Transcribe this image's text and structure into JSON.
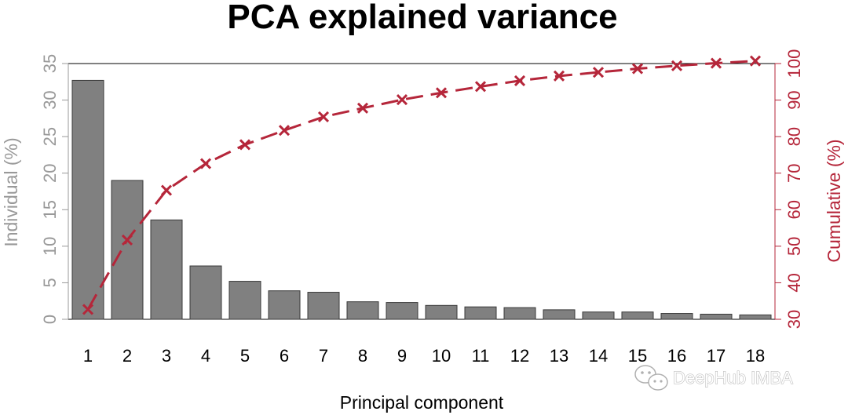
{
  "chart_data": {
    "type": "bar",
    "title": "PCA explained variance",
    "xlabel": "Principal component",
    "ylabel": "Individual (%)",
    "y2label": "Cumulative (%)",
    "categories": [
      "1",
      "2",
      "3",
      "4",
      "5",
      "6",
      "7",
      "8",
      "9",
      "10",
      "11",
      "12",
      "13",
      "14",
      "15",
      "16",
      "17",
      "18"
    ],
    "ylim": [
      0,
      35
    ],
    "yticks": [
      0,
      5,
      10,
      15,
      20,
      25,
      30,
      35
    ],
    "y2lim": [
      30,
      100
    ],
    "y2ticks": [
      30,
      40,
      50,
      60,
      70,
      80,
      90,
      100
    ],
    "series": [
      {
        "type": "bar",
        "axis": "left",
        "values": [
          32.7,
          19.0,
          13.6,
          7.3,
          5.2,
          3.9,
          3.7,
          2.4,
          2.3,
          1.9,
          1.7,
          1.6,
          1.3,
          1.0,
          1.0,
          0.8,
          0.7,
          0.6
        ]
      },
      {
        "type": "line",
        "axis": "right",
        "marker": "x",
        "values": [
          32.7,
          51.7,
          65.3,
          72.6,
          77.8,
          81.7,
          85.4,
          87.8,
          90.1,
          92.0,
          93.7,
          95.3,
          96.6,
          97.6,
          98.6,
          99.4,
          100.1,
          100.7
        ]
      }
    ],
    "colors": {
      "bar_fill": "#808080",
      "bar_stroke": "#3a3a3a",
      "left_axis": "#999999",
      "cumulative": "#b5263a"
    },
    "grid": false,
    "watermark": "DeepHub IMBA"
  }
}
